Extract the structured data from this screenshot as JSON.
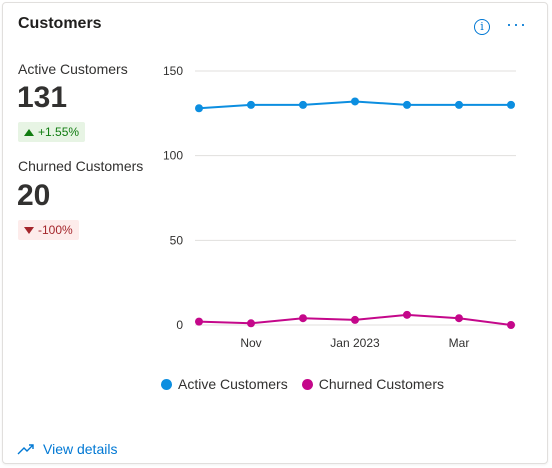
{
  "card": {
    "title": "Customers",
    "info_icon": "info-icon",
    "more_icon": "more-options-icon",
    "more_label": "···"
  },
  "kpis": [
    {
      "label": "Active Customers",
      "value": "131",
      "change": "+1.55%",
      "trend": "up"
    },
    {
      "label": "Churned Customers",
      "value": "20",
      "change": "-100%",
      "trend": "down"
    }
  ],
  "footer": {
    "link_label": "View details",
    "icon": "trend-arrow-icon"
  },
  "colors": {
    "active": "#0c8ee0",
    "churned": "#c4078a",
    "accent": "#0078d4",
    "grid": "#e1dfdd"
  },
  "chart_data": {
    "type": "line",
    "x": [
      "",
      "Nov",
      "",
      "Jan 2023",
      "",
      "Mar",
      ""
    ],
    "ylim": [
      0,
      150
    ],
    "yticks": [
      0,
      50,
      100,
      150
    ],
    "series": [
      {
        "name": "Active Customers",
        "values": [
          128,
          130,
          130,
          132,
          130,
          130,
          130
        ]
      },
      {
        "name": "Churned Customers",
        "values": [
          2,
          1,
          4,
          3,
          6,
          4,
          0
        ]
      }
    ],
    "legend": "bottom",
    "grid": true
  }
}
